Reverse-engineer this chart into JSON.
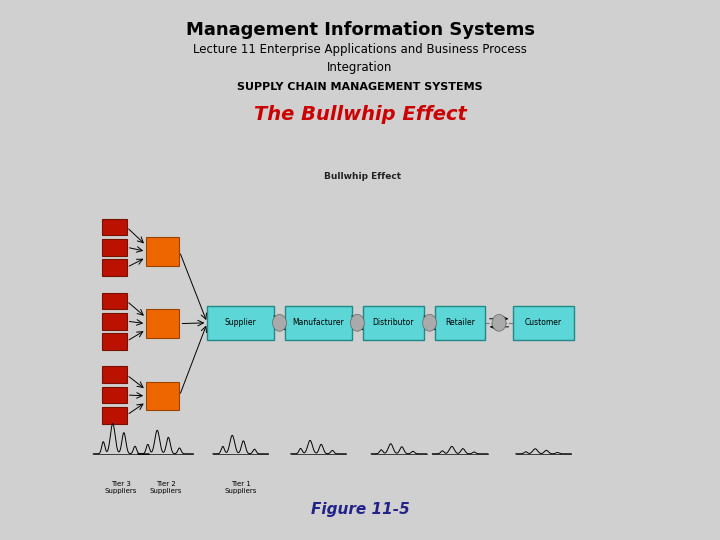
{
  "title": "Management Information Systems",
  "subtitle": "Lecture 11 Enterprise Applications and Business Process\nIntegration",
  "section": "SUPPLY CHAIN MANAGEMENT SYSTEMS",
  "heading": "The Bullwhip Effect",
  "figure_label": "Figure 11-5",
  "diagram_title": "Bullwhip Effect",
  "bg_color": "#d0d0d0",
  "panel_bg": "#ffffff",
  "title_color": "#000000",
  "heading_color": "#cc0000",
  "section_color": "#000000",
  "chain_nodes": [
    "Supplier",
    "Manufacturer",
    "Distributor",
    "Retailer",
    "Customer"
  ],
  "chain_color": "#5cd6d6",
  "tier3_color": "#bb1100",
  "tier2_color": "#ee6600",
  "tier_labels": [
    "Tier 3\nSuppliers",
    "Tier 2\nSuppliers",
    "Tier 1\nSuppliers"
  ]
}
